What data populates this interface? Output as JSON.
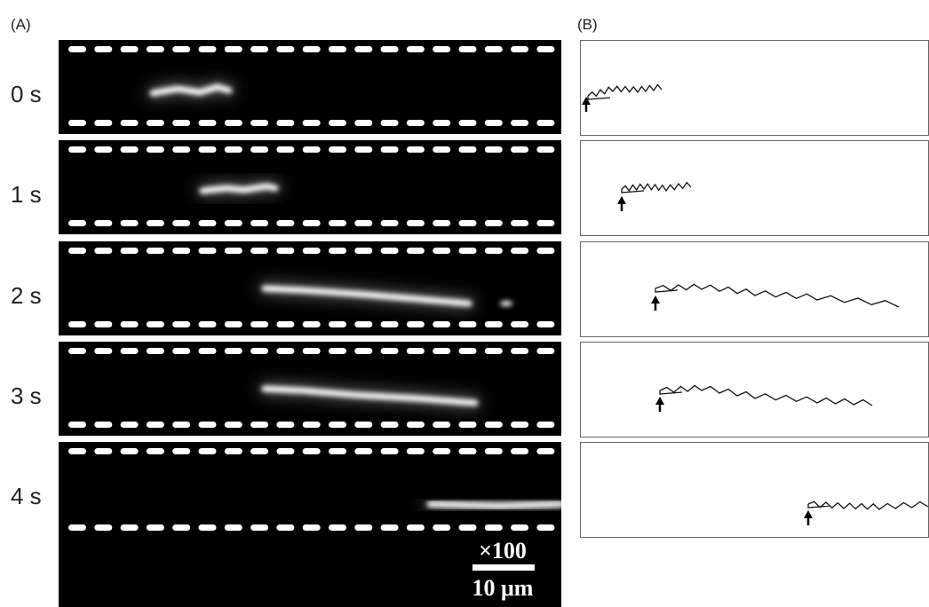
{
  "panel_a": {
    "label": "(A)",
    "frames": [
      {
        "time": "0 s"
      },
      {
        "time": "1 s"
      },
      {
        "time": "2 s"
      },
      {
        "time": "3 s"
      },
      {
        "time": "4 s"
      }
    ],
    "magnification": "×100",
    "scale_bar": "10 μm"
  },
  "panel_b": {
    "label": "(B)"
  }
}
